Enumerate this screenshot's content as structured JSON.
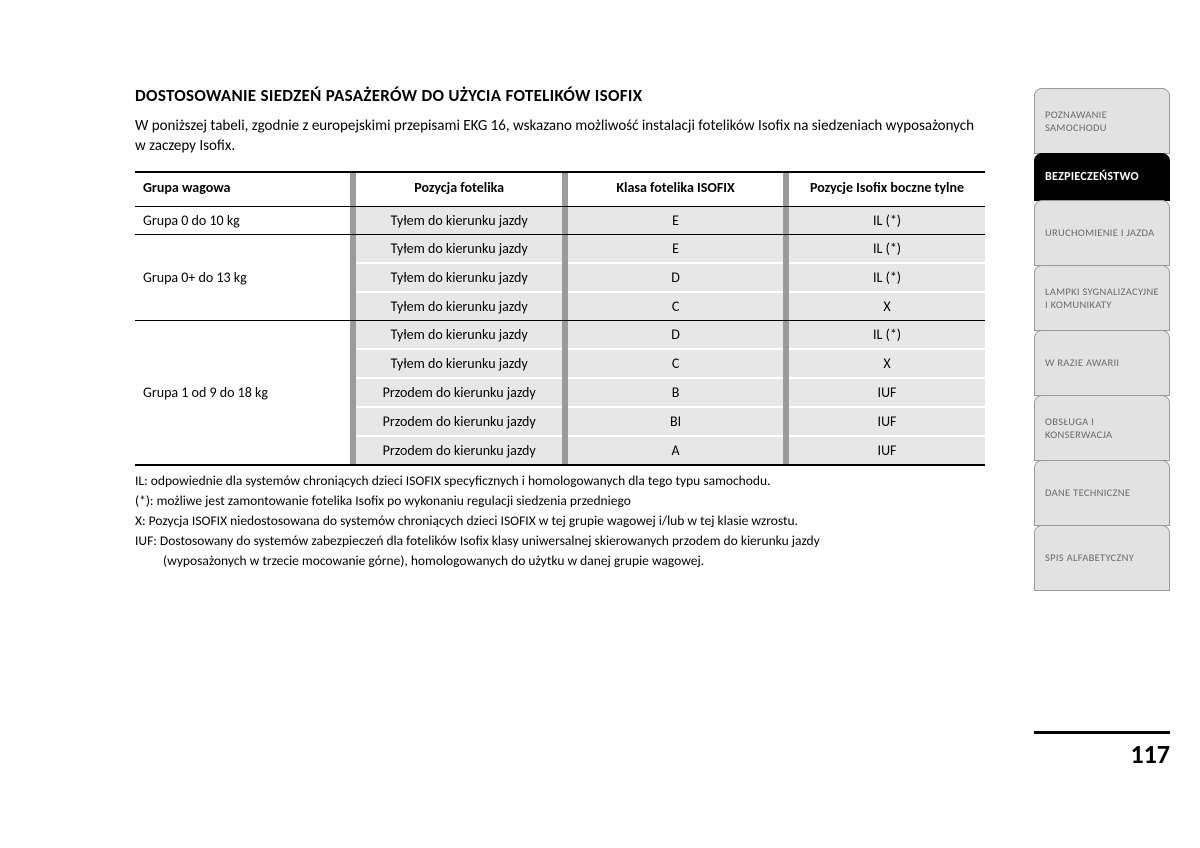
{
  "title": "DOSTOSOWANIE SIEDZEŃ PASAŻERÓW DO UŻYCIA FOTELIKÓW ISOFIX",
  "intro": "W poniższej tabeli, zgodnie z europejskimi przepisami EKG 16, wskazano możliwość instalacji fotelików Isofix na siedzeniach wyposażonych w zaczepy Isofix.",
  "table": {
    "headers": {
      "group": "Grupa wagowa",
      "position": "Pozycja fotelika",
      "class": "Klasa fotelika ISOFIX",
      "rear": "Pozycje Isofix boczne tylne"
    },
    "groups": [
      {
        "label": "Grupa 0 do 10 kg",
        "rows": [
          {
            "position": "Tyłem do kierunku jazdy",
            "class": "E",
            "rear": "IL (*)"
          }
        ]
      },
      {
        "label": "Grupa 0+ do 13 kg",
        "rows": [
          {
            "position": "Tyłem do kierunku jazdy",
            "class": "E",
            "rear": "IL (*)"
          },
          {
            "position": "Tyłem do kierunku jazdy",
            "class": "D",
            "rear": "IL (*)"
          },
          {
            "position": "Tyłem do kierunku jazdy",
            "class": "C",
            "rear": "X"
          }
        ]
      },
      {
        "label": "Grupa 1 od 9 do 18 kg",
        "rows": [
          {
            "position": "Tyłem do kierunku jazdy",
            "class": "D",
            "rear": "IL (*)"
          },
          {
            "position": "Tyłem do kierunku jazdy",
            "class": "C",
            "rear": "X"
          },
          {
            "position": "Przodem do kierunku jazdy",
            "class": "B",
            "rear": "IUF"
          },
          {
            "position": "Przodem do kierunku jazdy",
            "class": "BI",
            "rear": "IUF"
          },
          {
            "position": "Przodem do kierunku jazdy",
            "class": "A",
            "rear": "IUF"
          }
        ]
      }
    ]
  },
  "notes": [
    "IL: odpowiednie dla systemów chroniących dzieci ISOFIX specyficznych i homologowanych dla tego typu samochodu.",
    "(*): możliwe jest zamontowanie fotelika Isofix po wykonaniu regulacji siedzenia przedniego",
    "X: Pozycja ISOFIX niedostosowana do systemów chroniących dzieci ISOFIX w tej grupie wagowej i/lub w tej klasie wzrostu.",
    "IUF: Dostosowany do systemów zabezpieczeń dla fotelików Isofix klasy uniwersalnej skierowanych przodem do kierunku jazdy",
    "(wyposażonych w trzecie mocowanie górne), homologowanych do użytku w danej grupie wagowej."
  ],
  "notes_indent": [
    false,
    false,
    false,
    false,
    true
  ],
  "tabs": [
    {
      "label": "POZNAWANIE SAMOCHODU",
      "active": false,
      "tall": true
    },
    {
      "label": "BEZPIECZEŃSTWO",
      "active": true,
      "tall": false
    },
    {
      "label": "URUCHOMIENIE I JAZDA",
      "active": false,
      "tall": true
    },
    {
      "label": "LAMPKI SYGNALIZACYJNE I KOMUNIKATY",
      "active": false,
      "tall": true
    },
    {
      "label": "W RAZIE AWARII",
      "active": false,
      "tall": true
    },
    {
      "label": "OBSŁUGA I KONSERWACJA",
      "active": false,
      "tall": true
    },
    {
      "label": "DANE TECHNICZNE",
      "active": false,
      "tall": true
    },
    {
      "label": "SPIS ALFABETYCZNY",
      "active": false,
      "tall": true
    }
  ],
  "page_number": "117",
  "style": {
    "cell_bg": "#e7e7e7",
    "divider_color": "#9b9b9b",
    "tab_bg": "#e2e2e2",
    "tab_text": "#6a6a6a",
    "tab_active_bg": "#000000",
    "tab_active_text": "#ffffff"
  }
}
